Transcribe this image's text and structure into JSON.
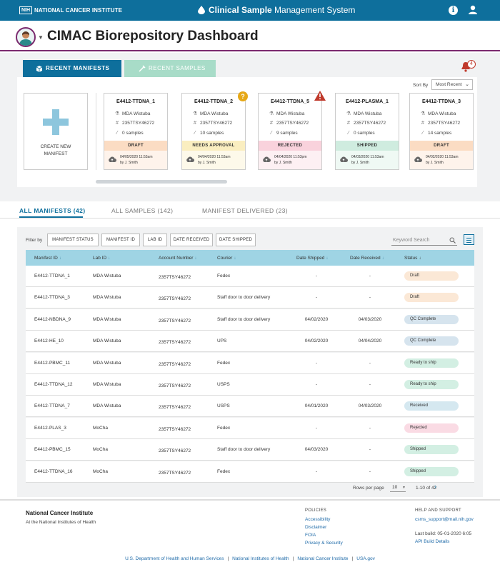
{
  "topbar": {
    "logo_text": "NIH",
    "org_name": "NATIONAL CANCER INSTITUTE",
    "app_title_bold": "Clinical Sample",
    "app_title_rest": " Management System"
  },
  "header": {
    "title": "CIMAC Biorepository Dashboard"
  },
  "panel": {
    "tabs": [
      {
        "label": "RECENT MANIFESTS"
      },
      {
        "label": "RECENT SAMPLES"
      }
    ],
    "notifications_count": "4",
    "sort_by_label": "Sort By",
    "sort_by_value": "Most Recent",
    "create_label_line1": "CREATE NEW",
    "create_label_line2": "MANIFEST",
    "cards": [
      {
        "id": "E4412-TTDNA_1",
        "lab": "MDA Wistuba",
        "account": "2357TSY46272",
        "samples": "0 samples",
        "status": "DRAFT",
        "date": "04/05/2020 11:53am",
        "by": "by J. Smith"
      },
      {
        "id": "E4412-TTDNA_2",
        "lab": "MDA Wistuba",
        "account": "2357TSY46272",
        "samples": "10 samples",
        "status": "NEEDS APPROVAL",
        "date": "04/04/2020 11:53am",
        "by": "by J. Smith"
      },
      {
        "id": "E4412-TTDNA_5",
        "lab": "MDA Wistuba",
        "account": "2357TSY46272",
        "samples": "9 samples",
        "status": "REJECTED",
        "date": "04/04/2020 11:53pm",
        "by": "by J. Smith"
      },
      {
        "id": "E4412-PLASMA_1",
        "lab": "MDA Wistuba",
        "account": "2357TSY46272",
        "samples": "0 samples",
        "status": "SHIPPED",
        "date": "04/03/2020 11:53am",
        "by": "by J. Smith"
      },
      {
        "id": "E4412-TTDNA_3",
        "lab": "MDA Wistuba",
        "account": "2357TSY46272",
        "samples": "14 samples",
        "status": "DRAFT",
        "date": "04/02/2020 11:53am",
        "by": "by J. Smith"
      }
    ],
    "warning_question": "?",
    "colors": {
      "draft": "#fbdcc3",
      "approval": "#faeec0",
      "rejected": "#f9d2dc",
      "shipped": "#cfecdf"
    }
  },
  "lower_tabs": [
    {
      "label": "ALL MANIFESTS (42)"
    },
    {
      "label": "ALL SAMPLES (142)"
    },
    {
      "label": "MANIFEST DELIVERED (23)"
    }
  ],
  "filters": {
    "label": "Filter by",
    "buttons": [
      "MANIFEST STATUS",
      "MANIFEST ID",
      "LAB ID",
      "DATE RECEIVED",
      "DATE SHIPPED"
    ],
    "search_placeholder": "Keyword Search"
  },
  "table": {
    "headers": [
      "Manifest ID",
      "Lab ID",
      "Account Number",
      "Courier",
      "Date Shipped",
      "Date Received",
      "Status"
    ],
    "rows": [
      {
        "id": "E4412-TTDNA_1",
        "lab": "MDA Wistuba",
        "account": "2357TSY46272",
        "courier": "Fedex",
        "shipped": "-",
        "received": "-",
        "status": "Draft"
      },
      {
        "id": "E4412-TTDNA_3",
        "lab": "MDA Wistuba",
        "account": "2357TSY46272",
        "courier": "Staff door to door delivery",
        "shipped": "-",
        "received": "-",
        "status": "Draft"
      },
      {
        "id": "E4412-NBDNA_9",
        "lab": "MDA Wistuba",
        "account": "2357TSY46272",
        "courier": "Staff door to door delivery",
        "shipped": "04/02/2020",
        "received": "04/03/2020",
        "status": "QC Complete"
      },
      {
        "id": "E4412-HE_10",
        "lab": "MDA Wistuba",
        "account": "2357TSY46272",
        "courier": "UPS",
        "shipped": "04/02/2020",
        "received": "04/04/2020",
        "status": "QC Complete"
      },
      {
        "id": "E4412-PBMC_11",
        "lab": "MDA Wistuba",
        "account": "2357TSY46272",
        "courier": "Fedex",
        "shipped": "-",
        "received": "-",
        "status": "Ready to ship"
      },
      {
        "id": "E4412-TTDNA_12",
        "lab": "MDA Wistuba",
        "account": "2357TSY46272",
        "courier": "USPS",
        "shipped": "-",
        "received": "-",
        "status": "Ready to ship"
      },
      {
        "id": "E4412-TTDNA_7",
        "lab": "MDA Wistuba",
        "account": "2357TSY46272",
        "courier": "USPS",
        "shipped": "04/01/2020",
        "received": "04/03/2020",
        "status": "Received"
      },
      {
        "id": "E4412-PLAS_3",
        "lab": "MoCha",
        "account": "2357TSY46272",
        "courier": "Fedex",
        "shipped": "-",
        "received": "-",
        "status": "Rejected"
      },
      {
        "id": "E4412-PBMC_15",
        "lab": "MoCha",
        "account": "2357TSY46272",
        "courier": "Staff door to door delivery",
        "shipped": "04/03/2020",
        "received": "-",
        "status": "Shipped"
      },
      {
        "id": "E4412-TTDNA_16",
        "lab": "MoCha",
        "account": "2357TSY46272",
        "courier": "Fedex",
        "shipped": "-",
        "received": "-",
        "status": "Shipped"
      }
    ],
    "status_colors": {
      "Draft": "#fbe8d6",
      "QC Complete": "#d6e4ee",
      "Ready to ship": "#d3efe3",
      "Received": "#d5e8f0",
      "Rejected": "#fadbe4",
      "Shipped": "#d3efe3"
    }
  },
  "pagination": {
    "rows_label": "Rows per page",
    "rows_value": "10",
    "info": "1-10 of 42"
  },
  "footer": {
    "org": "National Cancer Institute",
    "org_sub": "At the National Institutes of Health",
    "policies_head": "POLICIES",
    "policies": [
      "Accessibility",
      "Disclaimer",
      "FOIA",
      "Privacy & Security"
    ],
    "help_head": "HELP AND SUPPORT",
    "help_email": "csms_support@mail.nih.gov",
    "last_build": "Last build: 05-01-2020 6:05",
    "api_details": "API Build Details",
    "bottom_links": [
      "U.S. Department of Health and Human Services",
      "National Institutes of Health",
      "National Cancer Institute",
      "USA.gov"
    ]
  }
}
